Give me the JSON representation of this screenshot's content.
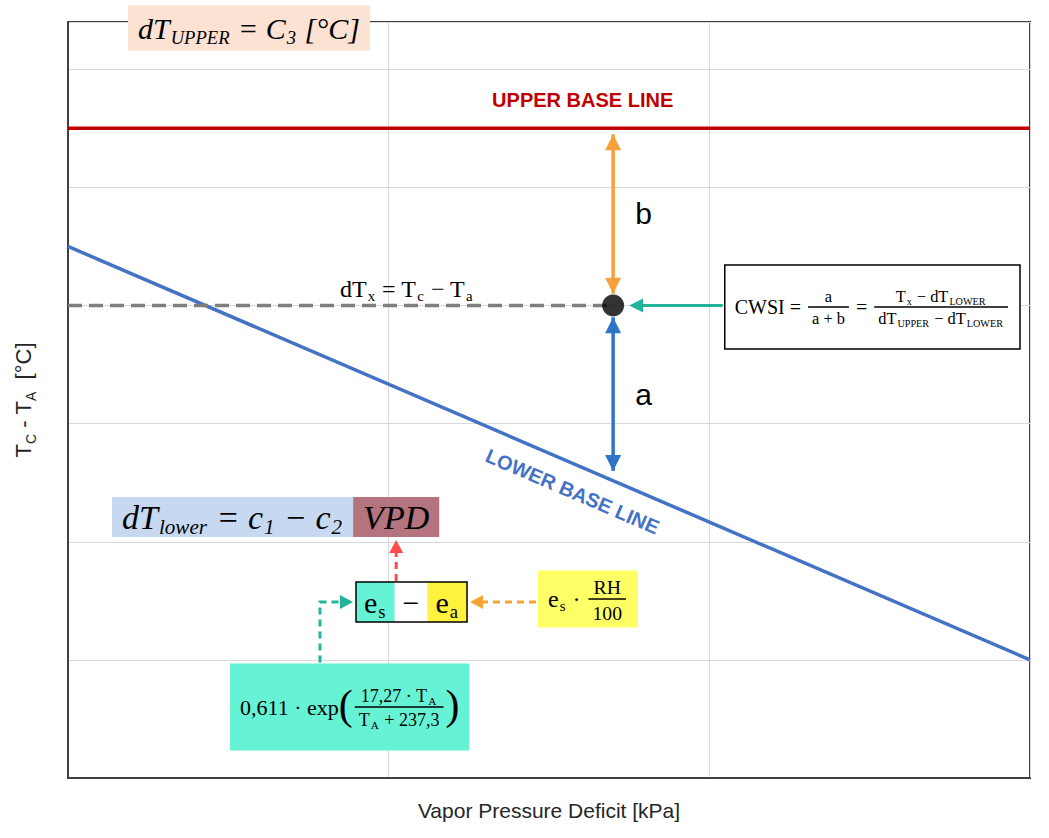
{
  "chart_data": {
    "type": "line",
    "x_label": "Vapor Pressure Deficit [kPa]",
    "y_label": [
      "T",
      {
        "sub": "C"
      },
      " - T",
      {
        "sub": "A"
      },
      "  [°C]"
    ],
    "xlim": [
      0,
      3
    ],
    "xticks": [
      0,
      1,
      2,
      3
    ],
    "ylim": [
      0,
      6.4
    ],
    "yticks": [
      0,
      1,
      2,
      3,
      4,
      5,
      6
    ],
    "grid": true,
    "tick_labels": false,
    "series": [
      {
        "label": "UPPER BASE LINE",
        "color": "#c00000",
        "x": [
          0,
          3
        ],
        "values": [
          5.5,
          5.5
        ]
      },
      {
        "label": "LOWER BASE LINE",
        "color": "#4472c4",
        "x": [
          0,
          3
        ],
        "values": [
          4.5,
          1.0
        ]
      },
      {
        "color": "#7f7f7f",
        "line_style": "dashed",
        "x": [
          0,
          1.7
        ],
        "values": [
          4.0,
          4.0
        ]
      },
      {
        "type": "scatter",
        "marker": "circle",
        "color": "#000000",
        "x": [
          1.7
        ],
        "values": [
          4.0
        ]
      }
    ],
    "arrows": [
      {
        "label": "b",
        "color": "#f4a13c",
        "x": 1.7,
        "from": 4.1,
        "to": 5.45
      },
      {
        "label": "a",
        "color": "#2e75c8",
        "x": 1.7,
        "from": 3.9,
        "to": 2.6
      }
    ],
    "formulas": {
      "upper": {
        "color": "#fbe2d2",
        "parts": [
          "dT",
          {
            "sub": "UPPER"
          },
          " = C",
          {
            "sub": "3"
          },
          " [°C]"
        ]
      },
      "dtx": {
        "parts": [
          "dT",
          {
            "sub": "x"
          },
          " = T",
          {
            "sub": "c"
          },
          " − T",
          {
            "sub": "a"
          }
        ]
      },
      "cwsi": {
        "parts": [
          "CWSI = ",
          {
            "frac": [
              [
                "a"
              ],
              [
                "a + b"
              ]
            ]
          },
          " = ",
          {
            "frac": [
              [
                "T",
                {
                  "sub": "x"
                },
                " − dT",
                {
                  "sub": "LOWER"
                }
              ],
              [
                "dT",
                {
                  "sub": "UPPER"
                },
                " − dT",
                {
                  "sub": "LOWER"
                }
              ]
            ]
          }
        ]
      },
      "lower": {
        "boxes": [
          {
            "color": "#c6d9f0",
            "parts": [
              "dT",
              {
                "sub": "lower"
              },
              " = c",
              {
                "sub": "1"
              },
              " − c",
              {
                "sub": "2"
              }
            ]
          },
          {
            "color": "#b5737d",
            "parts": [
              "VPD"
            ]
          }
        ]
      },
      "vpd": {
        "boxes": [
          {
            "color": "#66f2d4",
            "parts": [
              "e",
              {
                "sub": "s"
              }
            ]
          },
          {
            "parts": [
              "−"
            ]
          },
          {
            "color": "#fff23d",
            "parts": [
              "e",
              {
                "sub": "a"
              }
            ]
          }
        ]
      },
      "ea": {
        "color": "#ffff66",
        "parts": [
          "e",
          {
            "sub": "s"
          },
          " · ",
          {
            "frac": [
              [
                "RH"
              ],
              [
                "100"
              ]
            ]
          }
        ]
      },
      "es": {
        "color": "#66f2d4",
        "parts": [
          "0,611 · exp",
          "(",
          {
            "frac": [
              [
                "17,27 · T",
                {
                  "sub": "A"
                }
              ],
              [
                "T",
                {
                  "sub": "A"
                },
                " + 237,3"
              ]
            ]
          },
          ")"
        ]
      }
    }
  }
}
